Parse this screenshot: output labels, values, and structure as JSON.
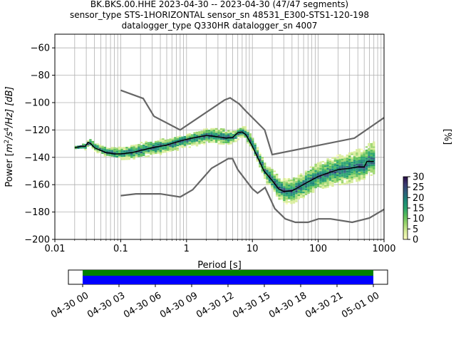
{
  "title": {
    "line1": "BK.BKS.00.HHE   2023-04-30 -- 2023-04-30  (47/47 segments)",
    "line2": "sensor_type STS-1HORIZONTAL sensor_sn 48531_E300-STS1-120-198",
    "line3": "datalogger_type Q330HR datalogger_sn 4007"
  },
  "chart_data": {
    "type": "heatmap",
    "xlabel": "Period [s]",
    "ylabel": "Power [m²/s⁴/Hz] [dB]",
    "ylabel_parts": {
      "before": "Power [",
      "m": "m",
      "e2": "2",
      "s": "/s",
      "e4": "4",
      "hz": "/Hz] [dB]"
    },
    "x_scale": "log",
    "xlim": [
      0.01,
      1000
    ],
    "ylim": [
      -200,
      -50
    ],
    "x_ticks": [
      0.01,
      0.1,
      1,
      10,
      100,
      1000
    ],
    "x_tick_labels": [
      "0.01",
      "0.1",
      "1",
      "10",
      "100",
      "1000"
    ],
    "y_ticks": [
      -200,
      -180,
      -160,
      -140,
      -120,
      -100,
      -80,
      -60
    ],
    "y_tick_labels": [
      "−200",
      "−180",
      "−160",
      "−140",
      "−120",
      "−100",
      "−80",
      "−60"
    ],
    "grid": true,
    "colorbar": {
      "label": "[%]",
      "range": [
        0,
        30
      ],
      "ticks": [
        0,
        5,
        10,
        15,
        20,
        25,
        30
      ],
      "tick_labels": [
        "0",
        "5",
        "10",
        "15",
        "20",
        "25",
        "30"
      ]
    },
    "model_curves": {
      "high": [
        [
          0.1,
          -91
        ],
        [
          0.22,
          -97
        ],
        [
          0.32,
          -110
        ],
        [
          0.8,
          -120
        ],
        [
          3.8,
          -98
        ],
        [
          4.6,
          -96.5
        ],
        [
          6.3,
          -101
        ],
        [
          7.9,
          -106
        ],
        [
          15.4,
          -120
        ],
        [
          20,
          -138
        ],
        [
          354.8,
          -126
        ],
        [
          1000,
          -111
        ]
      ],
      "low": [
        [
          0.1,
          -168
        ],
        [
          0.17,
          -166.7
        ],
        [
          0.4,
          -166.7
        ],
        [
          0.8,
          -169
        ],
        [
          1.24,
          -163.7
        ],
        [
          2.4,
          -148
        ],
        [
          4.3,
          -141
        ],
        [
          5,
          -141
        ],
        [
          6,
          -149
        ],
        [
          10,
          -163
        ],
        [
          12,
          -166.2
        ],
        [
          15.6,
          -162.1
        ],
        [
          21.9,
          -177.5
        ],
        [
          31.6,
          -185
        ],
        [
          45,
          -187.5
        ],
        [
          70,
          -187.5
        ],
        [
          101,
          -185
        ],
        [
          154,
          -185
        ],
        [
          328,
          -187.5
        ],
        [
          600,
          -184.4
        ],
        [
          1000,
          -178
        ]
      ]
    },
    "mode_curve": [
      [
        0.02,
        -133
      ],
      [
        0.025,
        -132
      ],
      [
        0.029,
        -132
      ],
      [
        0.032,
        -129
      ],
      [
        0.035,
        -130
      ],
      [
        0.04,
        -133
      ],
      [
        0.05,
        -135
      ],
      [
        0.06,
        -136.5
      ],
      [
        0.08,
        -137.5
      ],
      [
        0.1,
        -137.5
      ],
      [
        0.15,
        -136.5
      ],
      [
        0.2,
        -135
      ],
      [
        0.3,
        -133
      ],
      [
        0.5,
        -131
      ],
      [
        0.8,
        -128
      ],
      [
        1.2,
        -126
      ],
      [
        2,
        -124
      ],
      [
        3,
        -125
      ],
      [
        4,
        -126
      ],
      [
        5,
        -125.5
      ],
      [
        6,
        -122
      ],
      [
        7,
        -121.5
      ],
      [
        8,
        -123.5
      ],
      [
        10,
        -132
      ],
      [
        12,
        -140
      ],
      [
        15,
        -150
      ],
      [
        20,
        -157
      ],
      [
        25,
        -163
      ],
      [
        30,
        -165
      ],
      [
        40,
        -164.5
      ],
      [
        50,
        -162
      ],
      [
        70,
        -158
      ],
      [
        100,
        -154
      ],
      [
        150,
        -151
      ],
      [
        200,
        -149
      ],
      [
        300,
        -148
      ],
      [
        400,
        -147
      ],
      [
        500,
        -147
      ],
      [
        550,
        -143
      ],
      [
        700,
        -143
      ]
    ],
    "psd_spread": [
      [
        0.02,
        0.6,
        0.6
      ],
      [
        0.03,
        1.5,
        1.5
      ],
      [
        0.05,
        2,
        3
      ],
      [
        0.08,
        2,
        4
      ],
      [
        0.1,
        3,
        4
      ],
      [
        0.2,
        4,
        5
      ],
      [
        0.5,
        5,
        4
      ],
      [
        1,
        5,
        3
      ],
      [
        2,
        5,
        5
      ],
      [
        3,
        4,
        6
      ],
      [
        5,
        3,
        4
      ],
      [
        8,
        4,
        4
      ],
      [
        10,
        4,
        5
      ],
      [
        15,
        6,
        5
      ],
      [
        20,
        8,
        7
      ],
      [
        30,
        8,
        9
      ],
      [
        50,
        8,
        9
      ],
      [
        100,
        8,
        10
      ],
      [
        200,
        10,
        10
      ],
      [
        400,
        9,
        12
      ],
      [
        700,
        9,
        14
      ]
    ]
  },
  "timeline": {
    "tick_labels": [
      "04-30 00",
      "04-30 03",
      "04-30 06",
      "04-30 09",
      "04-30 12",
      "04-30 15",
      "04-30 18",
      "04-30 21",
      "05-01 00"
    ],
    "data_color": "#0000ff",
    "coverage_color": "#008000"
  },
  "colors": {
    "model_curve": "#666666",
    "mode_curve": "#000000",
    "grid": "#b0b0b0",
    "colormap": [
      "#fcfdbf",
      "#d9ed9b",
      "#9dd66f",
      "#5bbf5a",
      "#27a26e",
      "#1b8577",
      "#2d5f7b",
      "#3b3a72",
      "#2a0f46"
    ]
  }
}
